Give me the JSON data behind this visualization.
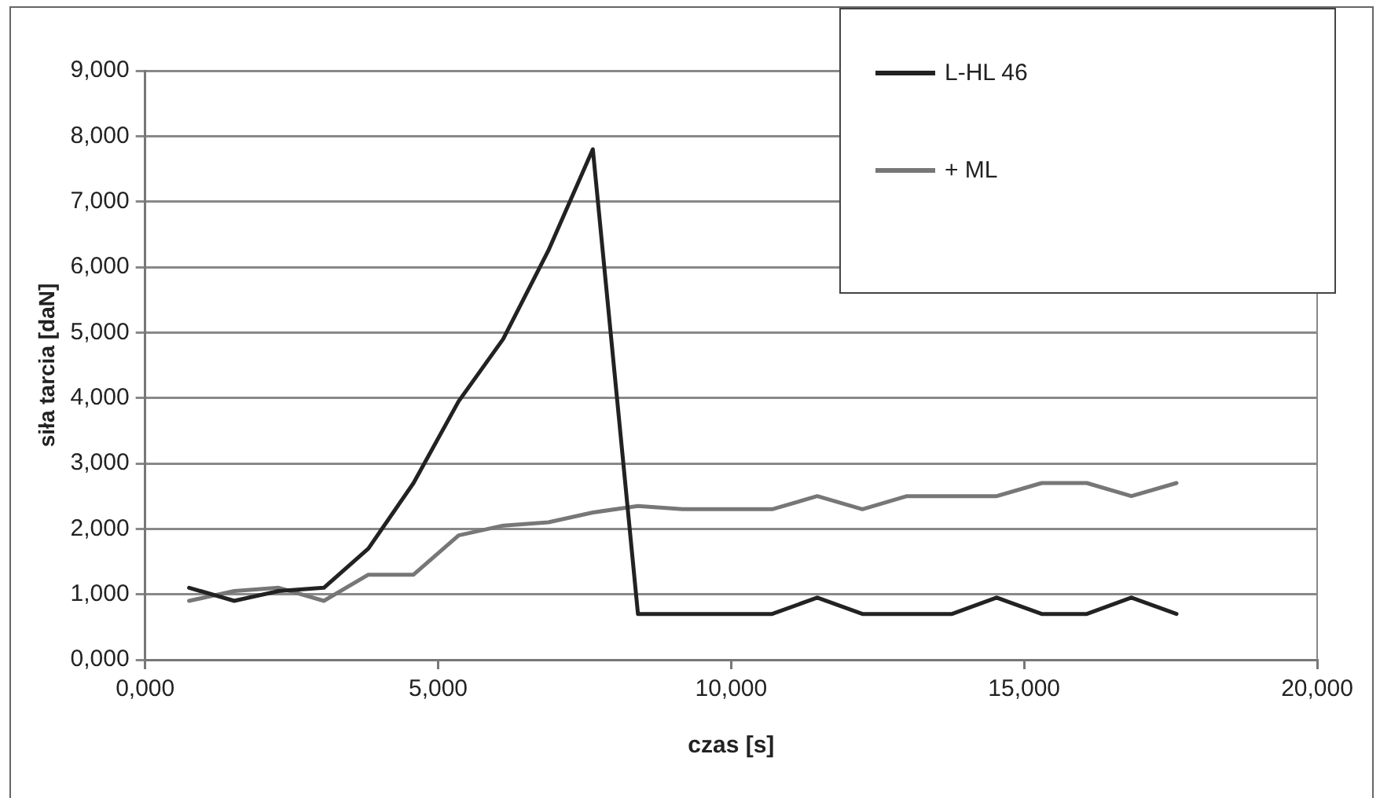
{
  "chart_data": {
    "type": "line",
    "xlabel": "czas [s]",
    "ylabel": "siła tarcia [daN]",
    "x": [
      0.75,
      1.52,
      2.28,
      3.05,
      3.81,
      4.58,
      5.35,
      6.11,
      6.88,
      7.64,
      8.41,
      9.17,
      9.94,
      10.7,
      11.47,
      12.24,
      13.0,
      13.77,
      14.53,
      15.3,
      16.07,
      16.83,
      17.6
    ],
    "series": [
      {
        "name": "L-HL 46",
        "color": "#222222",
        "values": [
          1.1,
          0.9,
          1.05,
          1.1,
          1.7,
          2.7,
          3.95,
          4.9,
          6.25,
          7.8,
          0.7,
          0.7,
          0.7,
          0.7,
          0.95,
          0.7,
          0.7,
          0.7,
          0.95,
          0.7,
          0.7,
          0.95,
          0.7
        ]
      },
      {
        "name": "+ ML",
        "color": "#777777",
        "values": [
          0.9,
          1.05,
          1.1,
          0.9,
          1.3,
          1.3,
          1.9,
          2.05,
          2.1,
          2.25,
          2.35,
          2.3,
          2.3,
          2.3,
          2.5,
          2.3,
          2.5,
          2.5,
          2.5,
          2.7,
          2.7,
          2.5,
          2.7
        ]
      }
    ],
    "xlim": [
      0,
      20
    ],
    "xticks": [
      {
        "value": 0,
        "label": "0,000"
      },
      {
        "value": 5,
        "label": "5,000"
      },
      {
        "value": 10,
        "label": "10,000"
      },
      {
        "value": 15,
        "label": "15,000"
      },
      {
        "value": 20,
        "label": "20,000"
      }
    ],
    "ylim": [
      0,
      9
    ],
    "yticks": [
      {
        "value": 0,
        "label": "0,000"
      },
      {
        "value": 1,
        "label": "1,000"
      },
      {
        "value": 2,
        "label": "2,000"
      },
      {
        "value": 3,
        "label": "3,000"
      },
      {
        "value": 4,
        "label": "4,000"
      },
      {
        "value": 5,
        "label": "5,000"
      },
      {
        "value": 6,
        "label": "6,000"
      },
      {
        "value": 7,
        "label": "7,000"
      },
      {
        "value": 8,
        "label": "8,000"
      },
      {
        "value": 9,
        "label": "9,000"
      }
    ],
    "grid": "y",
    "legend": "top right",
    "marker": "none",
    "line_style": "solid"
  }
}
